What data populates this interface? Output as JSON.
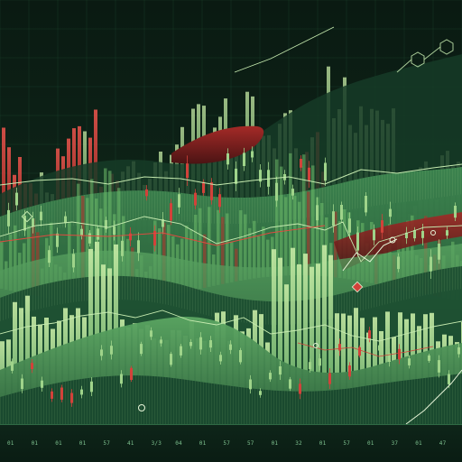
{
  "palette": {
    "background": "#0c1f16",
    "bull_dark": "#2f7d45",
    "bull_mid": "#58ad62",
    "bull_light": "#a9dc8f",
    "bull_pale": "#d6efb8",
    "bear": "#d2423a",
    "bear_dark": "#8a1f20",
    "wave_dark": "#1d4a30",
    "wave_mid": "#2f6e44",
    "wave_light": "#4f9a5c",
    "line": "#c6ebb0",
    "grid": "#1f4a33"
  },
  "icons": [
    "hexagon-network-icon",
    "diamond-marker-icon",
    "circle-node-icon"
  ],
  "axis_ticks": [
    "01",
    "01",
    "01",
    "01",
    "57",
    "41",
    "3/3",
    "04",
    "01",
    "57",
    "57",
    "01",
    "32",
    "01",
    "57",
    "01",
    "37",
    "01",
    "47"
  ]
}
